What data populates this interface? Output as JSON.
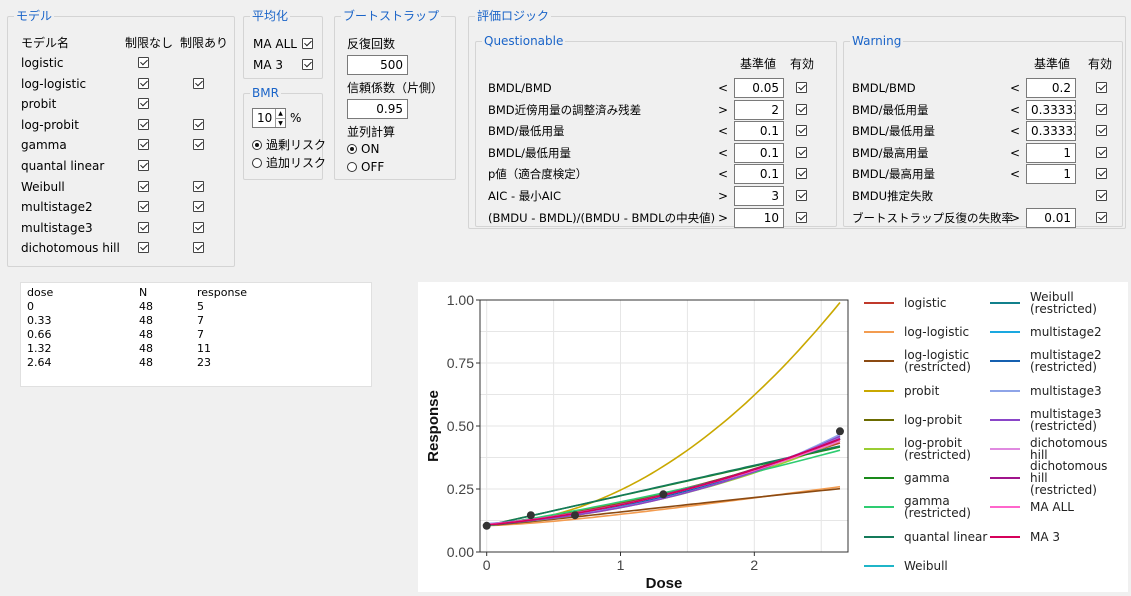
{
  "model_group": {
    "title": "モデル",
    "col_name": "モデル名",
    "col_unrestricted": "制限なし",
    "col_restricted": "制限あり",
    "models": [
      {
        "name": "logistic",
        "unrestricted": true,
        "restricted": null
      },
      {
        "name": "log-logistic",
        "unrestricted": true,
        "restricted": true
      },
      {
        "name": "probit",
        "unrestricted": true,
        "restricted": null
      },
      {
        "name": "log-probit",
        "unrestricted": true,
        "restricted": true
      },
      {
        "name": "gamma",
        "unrestricted": true,
        "restricted": true
      },
      {
        "name": "quantal linear",
        "unrestricted": true,
        "restricted": null
      },
      {
        "name": "Weibull",
        "unrestricted": true,
        "restricted": true
      },
      {
        "name": "multistage2",
        "unrestricted": true,
        "restricted": true
      },
      {
        "name": "multistage3",
        "unrestricted": true,
        "restricted": true
      },
      {
        "name": "dichotomous hill",
        "unrestricted": true,
        "restricted": true
      }
    ]
  },
  "averaging": {
    "title": "平均化",
    "ma_all_label": "MA ALL",
    "ma_all_checked": true,
    "ma3_label": "MA 3",
    "ma3_checked": true
  },
  "bmr": {
    "title": "BMR",
    "value": "10",
    "unit": "%",
    "option_extra": "過剰リスク",
    "option_added": "追加リスク",
    "selected": "extra"
  },
  "bootstrap": {
    "title": "ブートストラップ",
    "iterations_label": "反復回数",
    "iterations_value": "500",
    "confidence_label": "信頼係数（片側）",
    "confidence_value": "0.95",
    "parallel_label": "並列計算",
    "on_label": "ON",
    "off_label": "OFF",
    "parallel_on": true
  },
  "logic": {
    "title": "評価ロジック",
    "questionable": {
      "title": "Questionable",
      "col_criterion": "基準値",
      "col_enabled": "有効",
      "rows": [
        {
          "label": "BMDL/BMD",
          "op": "<",
          "value": "0.05",
          "enabled": true
        },
        {
          "label": "BMD近傍用量の調整済み残差",
          "op": ">",
          "value": "2",
          "enabled": true
        },
        {
          "label": "BMD/最低用量",
          "op": "<",
          "value": "0.1",
          "enabled": true
        },
        {
          "label": "BMDL/最低用量",
          "op": "<",
          "value": "0.1",
          "enabled": true
        },
        {
          "label": "p値（適合度検定）",
          "op": "<",
          "value": "0.1",
          "enabled": true
        },
        {
          "label": "AIC - 最小AIC",
          "op": ">",
          "value": "3",
          "enabled": true
        },
        {
          "label": "(BMDU - BMDL)/(BMDU - BMDLの中央値)",
          "op": ">",
          "value": "10",
          "enabled": true
        }
      ]
    },
    "warning": {
      "title": "Warning",
      "col_criterion": "基準値",
      "col_enabled": "有効",
      "rows": [
        {
          "label": "BMDL/BMD",
          "op": "<",
          "value": "0.2",
          "enabled": true
        },
        {
          "label": "BMD/最低用量",
          "op": "<",
          "value": "0.3333333",
          "enabled": true
        },
        {
          "label": "BMDL/最低用量",
          "op": "<",
          "value": "0.3333333",
          "enabled": true
        },
        {
          "label": "BMD/最高用量",
          "op": "<",
          "value": "1",
          "enabled": true
        },
        {
          "label": "BMDL/最高用量",
          "op": "<",
          "value": "1",
          "enabled": true
        },
        {
          "label": "BMDU推定失敗",
          "op": "",
          "value": null,
          "enabled": true
        },
        {
          "label": "ブートストラップ反復の失敗率",
          "op": ">",
          "value": "0.01",
          "enabled": true
        }
      ]
    }
  },
  "data_table": {
    "headers": [
      "dose",
      "N",
      "response"
    ],
    "rows": [
      [
        "0",
        "48",
        "5"
      ],
      [
        "0.33",
        "48",
        "7"
      ],
      [
        "0.66",
        "48",
        "7"
      ],
      [
        "1.32",
        "48",
        "11"
      ],
      [
        "2.64",
        "48",
        "23"
      ]
    ]
  },
  "chart_data": {
    "type": "line",
    "xlabel": "Dose",
    "ylabel": "Response",
    "xlim": [
      -0.05,
      2.7
    ],
    "ylim": [
      0,
      1.0
    ],
    "x_ticks": [
      0,
      1,
      2
    ],
    "y_ticks": [
      "0.00",
      "0.25",
      "0.50",
      "0.75",
      "1.00"
    ],
    "grid": true,
    "legend_position": "right",
    "points": [
      {
        "x": 0,
        "y": 0.104
      },
      {
        "x": 0.33,
        "y": 0.146
      },
      {
        "x": 0.66,
        "y": 0.146
      },
      {
        "x": 1.32,
        "y": 0.229
      },
      {
        "x": 2.64,
        "y": 0.479
      }
    ],
    "series": [
      {
        "name": "logistic",
        "color": "#c0392b",
        "model": "logistic"
      },
      {
        "name": "log-logistic",
        "color": "#f39c50",
        "model": "loglogistic"
      },
      {
        "name": "log-logistic (restricted)",
        "color": "#8b4a12",
        "model": "loglogistic_r"
      },
      {
        "name": "probit",
        "color": "#c9a800",
        "model": "probit"
      },
      {
        "name": "log-probit",
        "color": "#6b6b00",
        "model": "logprobit"
      },
      {
        "name": "log-probit (restricted)",
        "color": "#9acd32",
        "model": "logprobit_r"
      },
      {
        "name": "gamma",
        "color": "#1a8a1a",
        "model": "gamma"
      },
      {
        "name": "gamma (restricted)",
        "color": "#2ecc71",
        "model": "gamma_r"
      },
      {
        "name": "quantal linear",
        "color": "#147a5a",
        "model": "linear"
      },
      {
        "name": "Weibull",
        "color": "#1fb5c8",
        "model": "weibull"
      },
      {
        "name": "Weibull (restricted)",
        "color": "#11808c",
        "model": "weibull_r"
      },
      {
        "name": "multistage2",
        "color": "#1aa8e0",
        "model": "ms2"
      },
      {
        "name": "multistage2 (restricted)",
        "color": "#1560b0",
        "model": "ms2_r"
      },
      {
        "name": "multistage3",
        "color": "#8ea4e8",
        "model": "ms3"
      },
      {
        "name": "multistage3 (restricted)",
        "color": "#8a45c8",
        "model": "ms3_r"
      },
      {
        "name": "dichotomous hill",
        "color": "#e08ae0",
        "model": "hill"
      },
      {
        "name": "dichotomous hill (restricted)",
        "color": "#a0148c",
        "model": "hill_r"
      },
      {
        "name": "MA ALL",
        "color": "#ff66cc",
        "model": "maall"
      },
      {
        "name": "MA 3",
        "color": "#d6005a",
        "model": "ma3"
      }
    ]
  }
}
